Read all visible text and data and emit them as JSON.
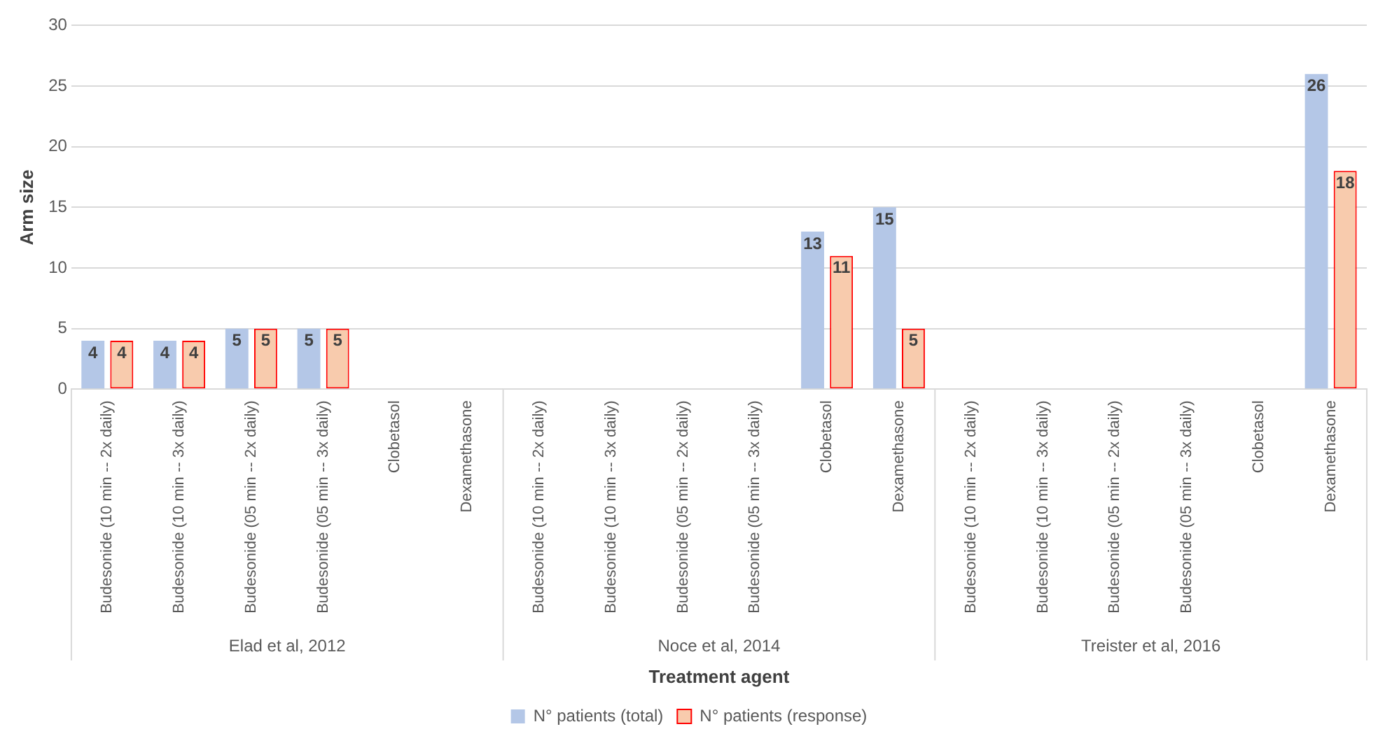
{
  "chart_data": {
    "type": "bar",
    "xlabel": "Treatment agent",
    "ylabel": "Arm size",
    "categories": [
      "Budesonide (10 min -- 2x daily)",
      "Budesonide (10 min -- 3x daily)",
      "Budesonide (05 min -- 2x daily)",
      "Budesonide (05 min -- 3x daily)",
      "Clobetasol",
      "Dexamethasone",
      "Budesonide (10 min -- 2x daily)",
      "Budesonide (10 min -- 3x daily)",
      "Budesonide (05 min -- 2x daily)",
      "Budesonide (05 min -- 3x daily)",
      "Clobetasol",
      "Dexamethasone",
      "Budesonide (10 min -- 2x daily)",
      "Budesonide (10 min -- 3x daily)",
      "Budesonide (05 min -- 2x daily)",
      "Budesonide (05 min -- 3x daily)",
      "Clobetasol",
      "Dexamethasone"
    ],
    "series": [
      {
        "name": "N° patients (total)",
        "color": "#b4c7e7",
        "values": [
          4,
          4,
          5,
          5,
          null,
          null,
          null,
          null,
          null,
          null,
          13,
          15,
          null,
          null,
          null,
          null,
          null,
          26
        ]
      },
      {
        "name": "N° patients (response)",
        "color": "#f8cbad",
        "values": [
          4,
          4,
          5,
          5,
          null,
          null,
          null,
          null,
          null,
          null,
          11,
          5,
          null,
          null,
          null,
          null,
          null,
          18
        ]
      }
    ],
    "annotations": [
      "Elad et al, 2012",
      "Noce et al, 2014",
      "Treister et al, 2016"
    ],
    "ylim": [
      0,
      30
    ],
    "yticks": [
      0,
      5,
      10,
      15,
      20,
      25,
      30
    ],
    "grid": "y",
    "legend": "bottom",
    "data_labels": true
  }
}
